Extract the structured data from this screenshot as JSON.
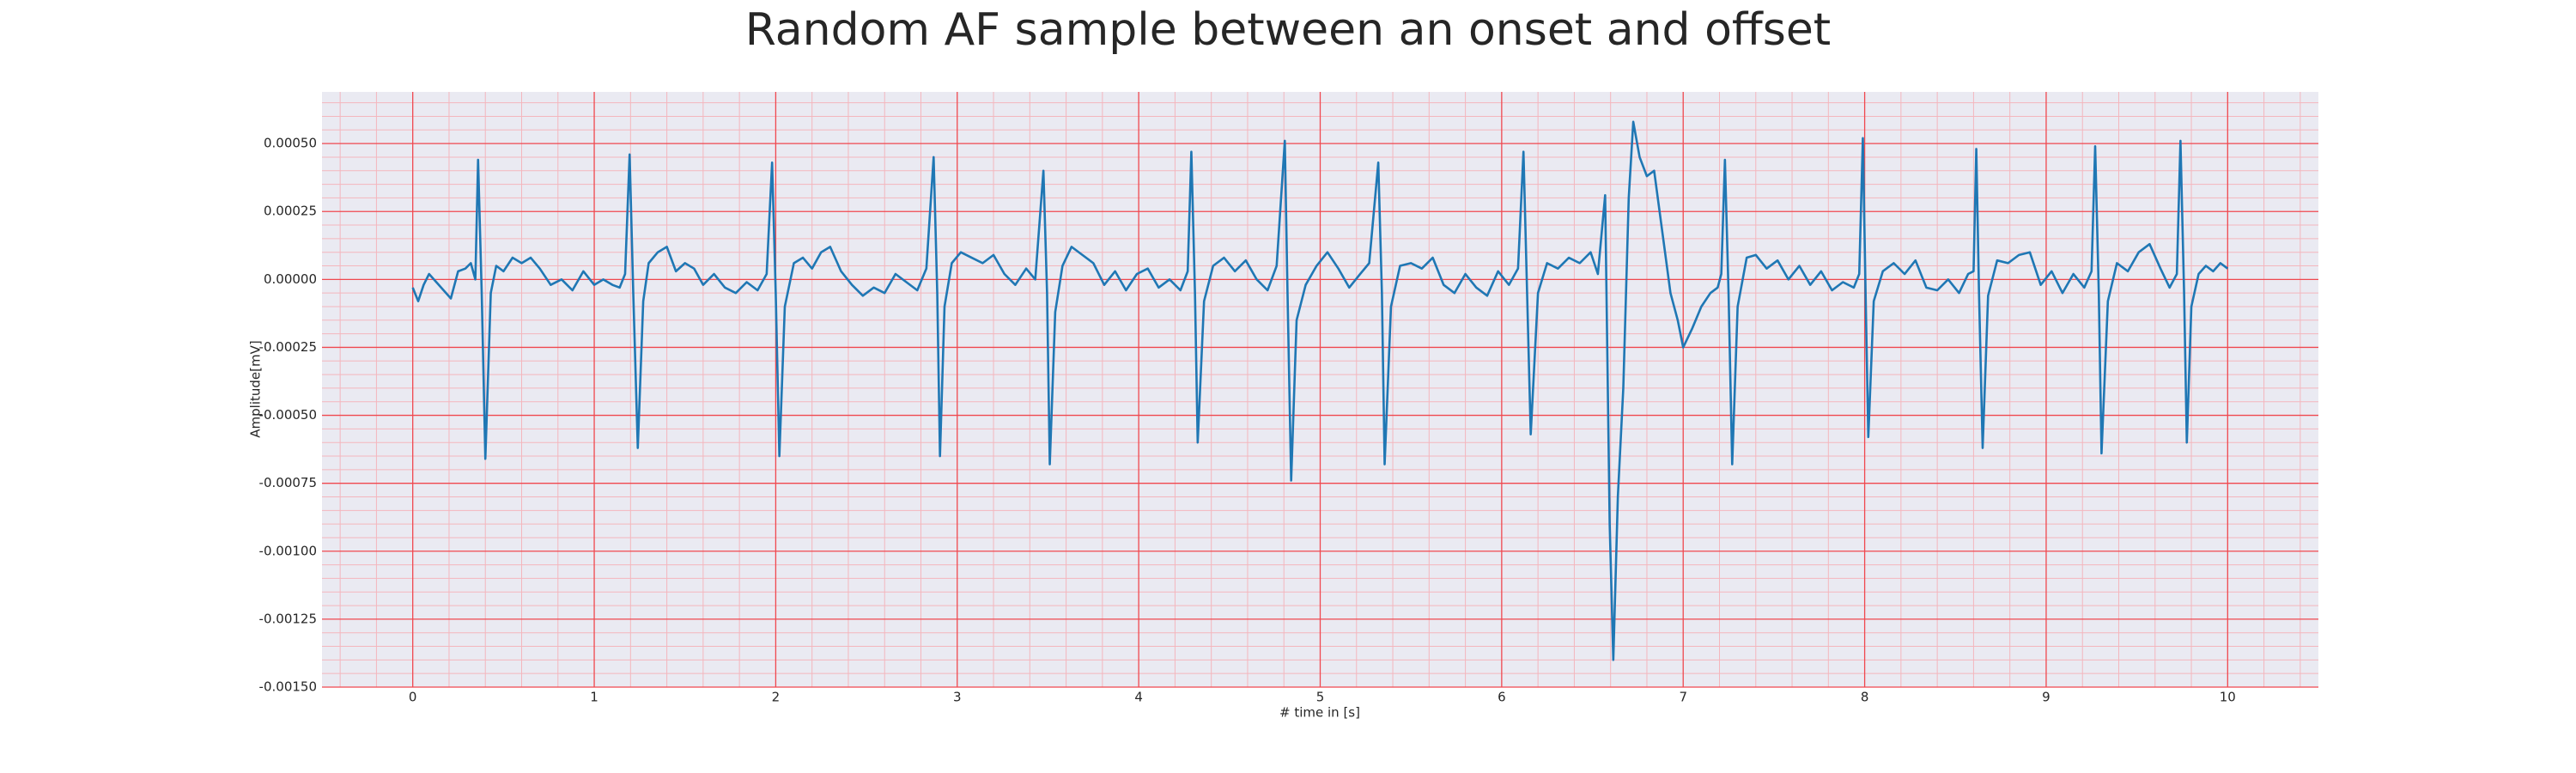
{
  "chart_data": {
    "type": "line",
    "title": "Random AF sample between an onset and offset",
    "x_label": "# time in [s]",
    "y_label": "Amplitude[mV]",
    "color": "#1f77b4",
    "grid": true,
    "minor_grid": true,
    "xlim": [
      -0.5,
      10.5
    ],
    "xticks": [
      0,
      1,
      2,
      3,
      4,
      5,
      6,
      7,
      8,
      9,
      10
    ],
    "ylim": [
      -0.0015,
      0.00069
    ],
    "yticks": [
      {
        "value": 0.0005,
        "label": "0.00050"
      },
      {
        "value": 0.00025,
        "label": "0.00025"
      },
      {
        "value": 0,
        "label": "0.00000"
      },
      {
        "value": -0.00025,
        "label": "-0.00025"
      },
      {
        "value": -0.0005,
        "label": "-0.00050"
      },
      {
        "value": -0.00075,
        "label": "-0.00075"
      },
      {
        "value": -0.001,
        "label": "-0.00100"
      },
      {
        "value": -0.00125,
        "label": "-0.00125"
      },
      {
        "value": -0.0015,
        "label": "-0.00150"
      }
    ],
    "x": [
      0,
      0.03,
      0.06,
      0.09,
      0.13,
      0.17,
      0.21,
      0.25,
      0.29,
      0.32,
      0.345,
      0.36,
      0.38,
      0.4,
      0.43,
      0.46,
      0.5,
      0.55,
      0.6,
      0.65,
      0.7,
      0.76,
      0.82,
      0.88,
      0.94,
      1.0,
      1.05,
      1.1,
      1.14,
      1.17,
      1.195,
      1.215,
      1.24,
      1.27,
      1.3,
      1.35,
      1.4,
      1.45,
      1.5,
      1.55,
      1.6,
      1.66,
      1.72,
      1.78,
      1.84,
      1.9,
      1.95,
      1.98,
      2.0,
      2.02,
      2.05,
      2.1,
      2.15,
      2.2,
      2.25,
      2.3,
      2.36,
      2.42,
      2.48,
      2.54,
      2.6,
      2.66,
      2.72,
      2.78,
      2.83,
      2.87,
      2.89,
      2.905,
      2.93,
      2.97,
      3.02,
      3.08,
      3.14,
      3.2,
      3.26,
      3.32,
      3.38,
      3.43,
      3.475,
      3.495,
      3.51,
      3.54,
      3.58,
      3.63,
      3.69,
      3.75,
      3.81,
      3.87,
      3.93,
      3.99,
      4.05,
      4.11,
      4.17,
      4.23,
      4.27,
      4.29,
      4.31,
      4.325,
      4.36,
      4.41,
      4.47,
      4.53,
      4.59,
      4.65,
      4.71,
      4.76,
      4.805,
      4.82,
      4.84,
      4.87,
      4.92,
      4.98,
      5.04,
      5.1,
      5.16,
      5.22,
      5.27,
      5.32,
      5.34,
      5.355,
      5.39,
      5.44,
      5.5,
      5.56,
      5.62,
      5.68,
      5.74,
      5.8,
      5.86,
      5.92,
      5.98,
      6.04,
      6.09,
      6.12,
      6.14,
      6.16,
      6.2,
      6.25,
      6.31,
      6.37,
      6.43,
      6.49,
      6.53,
      6.57,
      6.595,
      6.615,
      6.64,
      6.67,
      6.7,
      6.725,
      6.76,
      6.8,
      6.84,
      6.88,
      6.93,
      6.97,
      7.0,
      7.05,
      7.1,
      7.15,
      7.19,
      7.21,
      7.23,
      7.25,
      7.27,
      7.3,
      7.35,
      7.4,
      7.46,
      7.52,
      7.58,
      7.64,
      7.7,
      7.76,
      7.82,
      7.88,
      7.94,
      7.97,
      7.99,
      8.005,
      8.02,
      8.05,
      8.1,
      8.16,
      8.22,
      8.28,
      8.34,
      8.4,
      8.46,
      8.52,
      8.57,
      8.6,
      8.615,
      8.63,
      8.65,
      8.68,
      8.73,
      8.79,
      8.85,
      8.91,
      8.97,
      9.03,
      9.09,
      9.15,
      9.21,
      9.25,
      9.27,
      9.29,
      9.305,
      9.34,
      9.39,
      9.45,
      9.51,
      9.57,
      9.63,
      9.68,
      9.72,
      9.74,
      9.76,
      9.775,
      9.8,
      9.84,
      9.88,
      9.92,
      9.96,
      10.0
    ],
    "values": [
      -3e-05,
      -8e-05,
      -2e-05,
      2e-05,
      -1e-05,
      -4e-05,
      -7e-05,
      3e-05,
      4e-05,
      6e-05,
      0,
      0.00044,
      -5e-05,
      -0.00066,
      -5e-05,
      5e-05,
      3e-05,
      8e-05,
      6e-05,
      8e-05,
      4e-05,
      -2e-05,
      0,
      -4e-05,
      3e-05,
      -2e-05,
      0,
      -2e-05,
      -3e-05,
      2e-05,
      0.00046,
      -5e-05,
      -0.00062,
      -8e-05,
      6e-05,
      0.0001,
      0.00012,
      3e-05,
      6e-05,
      4e-05,
      -2e-05,
      2e-05,
      -3e-05,
      -5e-05,
      -1e-05,
      -4e-05,
      2e-05,
      0.00043,
      -5e-05,
      -0.00065,
      -0.0001,
      6e-05,
      8e-05,
      4e-05,
      0.0001,
      0.00012,
      3e-05,
      -2e-05,
      -6e-05,
      -3e-05,
      -5e-05,
      2e-05,
      -1e-05,
      -4e-05,
      4e-05,
      0.00045,
      -5e-05,
      -0.00065,
      -0.0001,
      6e-05,
      0.0001,
      8e-05,
      6e-05,
      9e-05,
      2e-05,
      -2e-05,
      4e-05,
      0,
      0.0004,
      -5e-05,
      -0.00068,
      -0.00012,
      5e-05,
      0.00012,
      9e-05,
      6e-05,
      -2e-05,
      3e-05,
      -4e-05,
      2e-05,
      4e-05,
      -3e-05,
      0,
      -4e-05,
      3e-05,
      0.00047,
      -5e-05,
      -0.0006,
      -8e-05,
      5e-05,
      8e-05,
      3e-05,
      7e-05,
      0,
      -4e-05,
      5e-05,
      0.00051,
      -5e-05,
      -0.00074,
      -0.00015,
      -2e-05,
      5e-05,
      0.0001,
      4e-05,
      -3e-05,
      2e-05,
      6e-05,
      0.00043,
      -5e-05,
      -0.00068,
      -0.0001,
      5e-05,
      6e-05,
      4e-05,
      8e-05,
      -2e-05,
      -5e-05,
      2e-05,
      -3e-05,
      -6e-05,
      3e-05,
      -2e-05,
      4e-05,
      0.00047,
      -5e-05,
      -0.00057,
      -5e-05,
      6e-05,
      4e-05,
      8e-05,
      6e-05,
      0.0001,
      2e-05,
      0.00031,
      -0.0009,
      -0.0014,
      -0.0008,
      -0.0004,
      0.0003,
      0.00058,
      0.00045,
      0.00038,
      0.0004,
      0.0002,
      -5e-05,
      -0.00015,
      -0.00025,
      -0.00018,
      -0.0001,
      -5e-05,
      -3e-05,
      2e-05,
      0.00044,
      -5e-05,
      -0.00068,
      -0.0001,
      8e-05,
      9e-05,
      4e-05,
      7e-05,
      0,
      5e-05,
      -2e-05,
      3e-05,
      -4e-05,
      -1e-05,
      -3e-05,
      2e-05,
      0.00052,
      -5e-05,
      -0.00058,
      -8e-05,
      3e-05,
      6e-05,
      2e-05,
      7e-05,
      -3e-05,
      -4e-05,
      0,
      -5e-05,
      2e-05,
      3e-05,
      0.00048,
      -5e-05,
      -0.00062,
      -6e-05,
      7e-05,
      6e-05,
      9e-05,
      0.0001,
      -2e-05,
      3e-05,
      -5e-05,
      2e-05,
      -3e-05,
      3e-05,
      0.00049,
      -5e-05,
      -0.00064,
      -8e-05,
      6e-05,
      3e-05,
      0.0001,
      0.00013,
      4e-05,
      -3e-05,
      2e-05,
      0.00051,
      -5e-05,
      -0.0006,
      -0.0001,
      2e-05,
      5e-05,
      3e-05,
      6e-05,
      4e-05
    ]
  }
}
